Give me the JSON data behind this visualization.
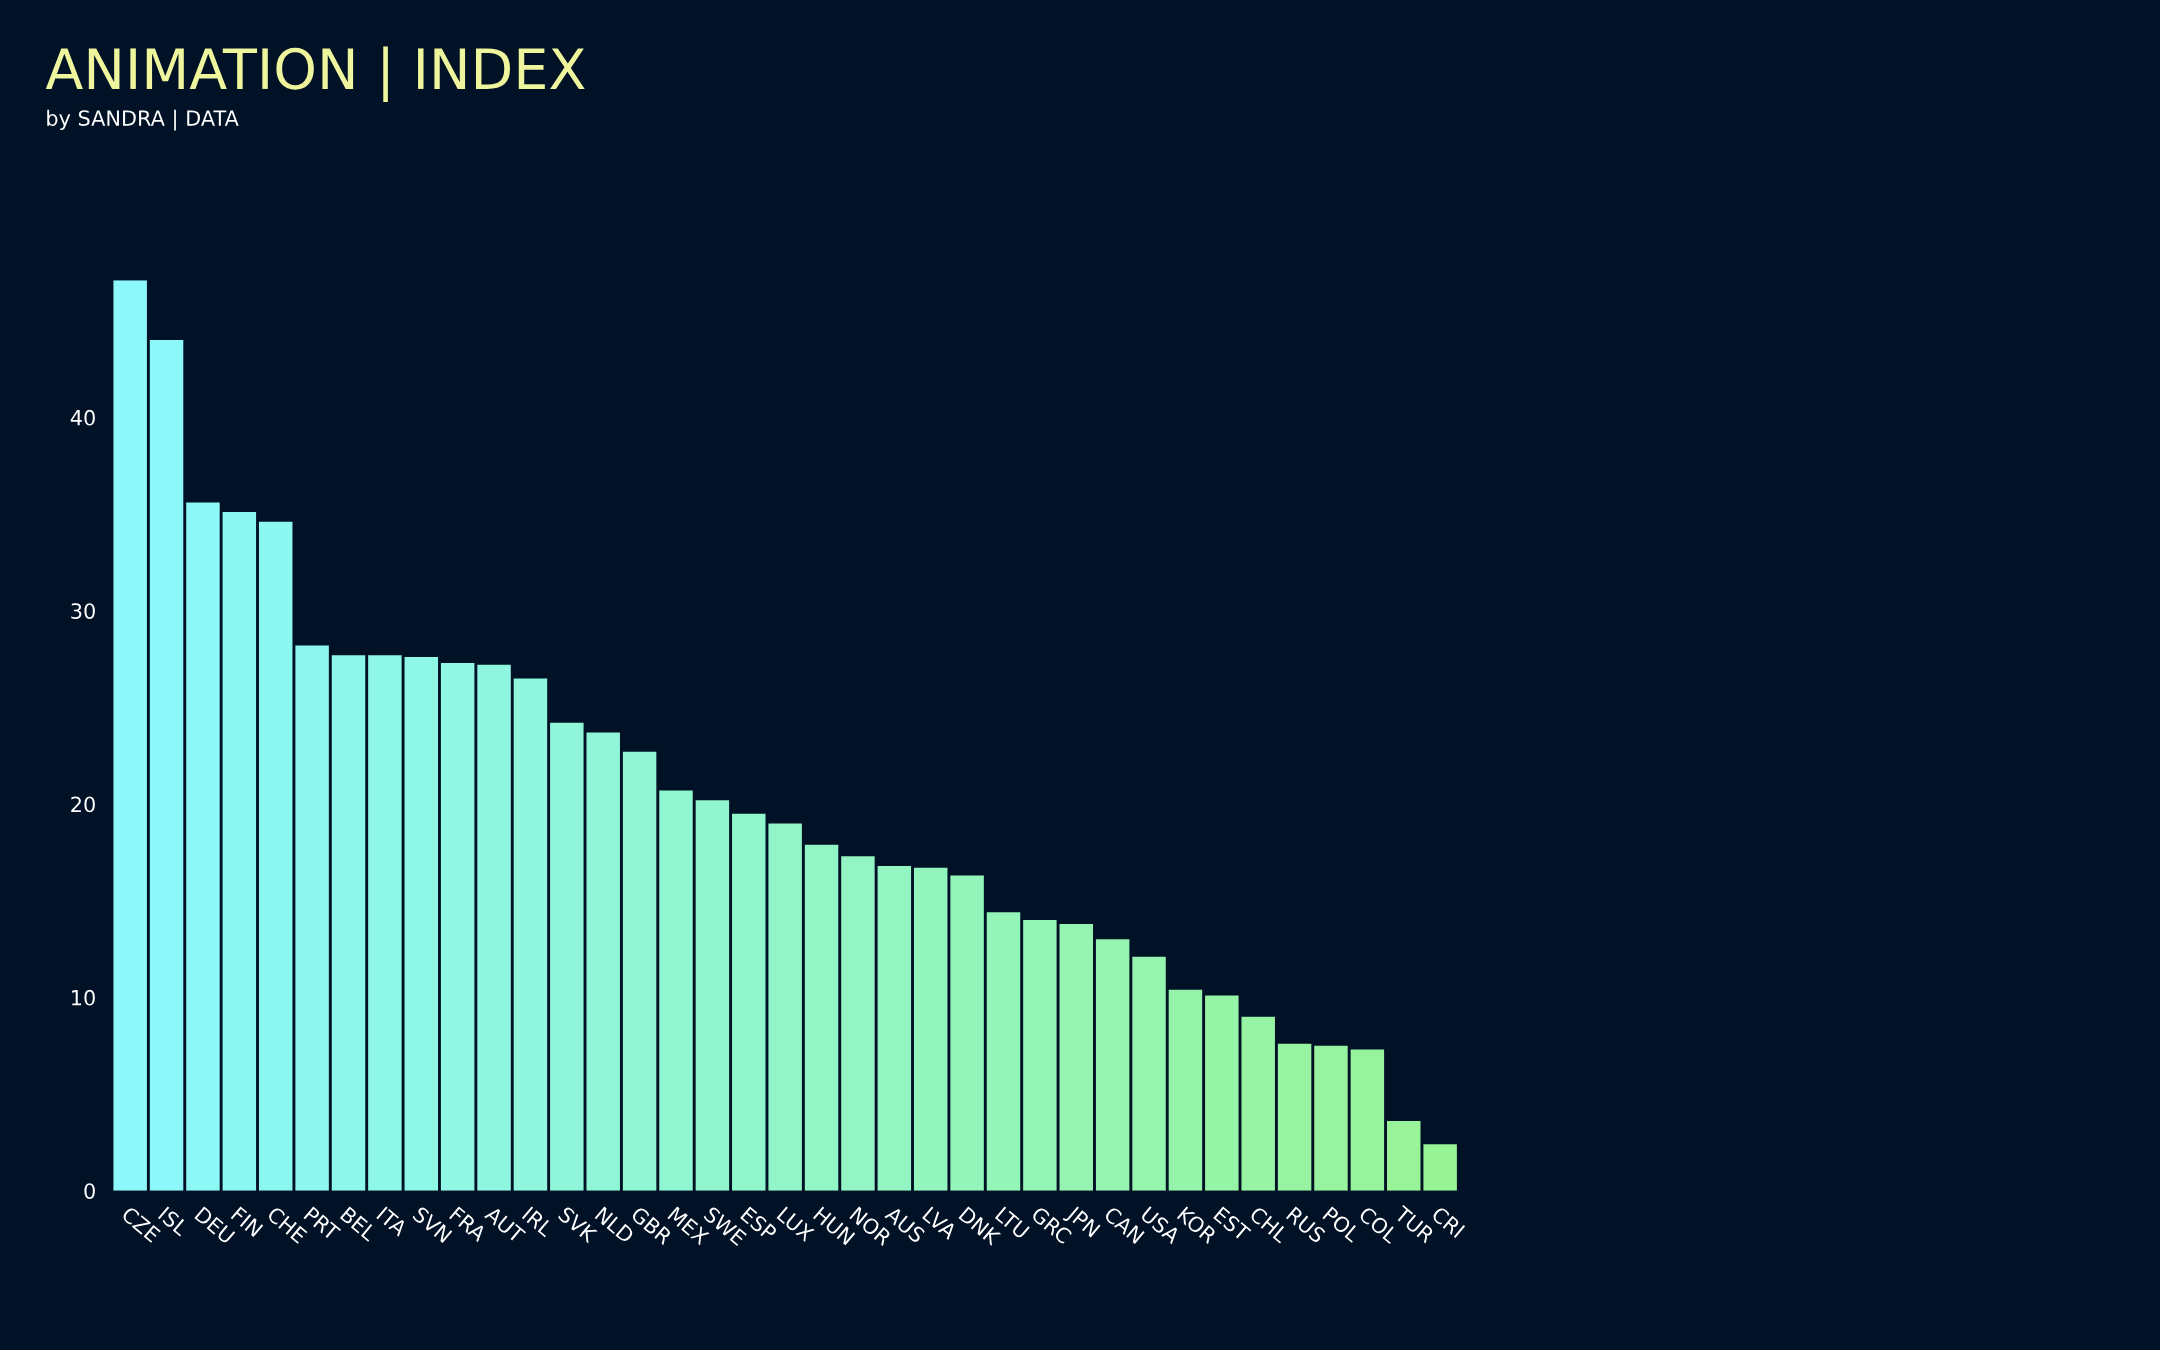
{
  "chart_data": {
    "type": "bar",
    "title": "ANIMATION | INDEX",
    "subtitle": "by SANDRA | DATA",
    "categories": [
      "CZE",
      "ISL",
      "DEU",
      "FIN",
      "CHE",
      "PRT",
      "BEL",
      "ITA",
      "SVN",
      "FRA",
      "AUT",
      "IRL",
      "SVK",
      "NLD",
      "GBR",
      "MEX",
      "SWE",
      "ESP",
      "LUX",
      "HUN",
      "NOR",
      "AUS",
      "LVA",
      "DNK",
      "LTU",
      "GRC",
      "JPN",
      "CAN",
      "USA",
      "KOR",
      "EST",
      "CHL",
      "RUS",
      "POL",
      "COL",
      "TUR",
      "CRI"
    ],
    "values": [
      47.1,
      44.0,
      35.6,
      35.1,
      34.6,
      28.2,
      27.7,
      27.7,
      27.6,
      27.3,
      27.2,
      26.5,
      24.2,
      23.7,
      22.7,
      20.7,
      20.2,
      19.5,
      19.0,
      17.9,
      17.3,
      16.8,
      16.7,
      16.3,
      14.4,
      14.0,
      13.8,
      13.0,
      12.1,
      10.4,
      10.1,
      9.0,
      7.6,
      7.5,
      7.3,
      3.6,
      2.4
    ],
    "colors": [
      "#8cf8fc",
      "#8cf8f9",
      "#8df8f6",
      "#8df8f3",
      "#8df7f1",
      "#8ef7ee",
      "#8ef7eb",
      "#8ef7e8",
      "#8ff7e5",
      "#8ff7e3",
      "#8ff7e0",
      "#90f6dd",
      "#90f6da",
      "#90f6d7",
      "#91f6d4",
      "#91f6d2",
      "#91f6cf",
      "#92f6cc",
      "#92f5c9",
      "#92f5c6",
      "#93f5c3",
      "#93f5c1",
      "#93f5be",
      "#94f5bb",
      "#94f5b8",
      "#94f4b5",
      "#95f4b2",
      "#95f4b0",
      "#95f4ad",
      "#96f4aa",
      "#96f4a7",
      "#96f4a4",
      "#97f3a1",
      "#97f39f",
      "#97f39c",
      "#98f399",
      "#98f396"
    ],
    "ylim": [
      0,
      47.1
    ],
    "yticks": [
      0,
      10,
      20,
      30,
      40
    ],
    "grid": false,
    "legend": false
  }
}
